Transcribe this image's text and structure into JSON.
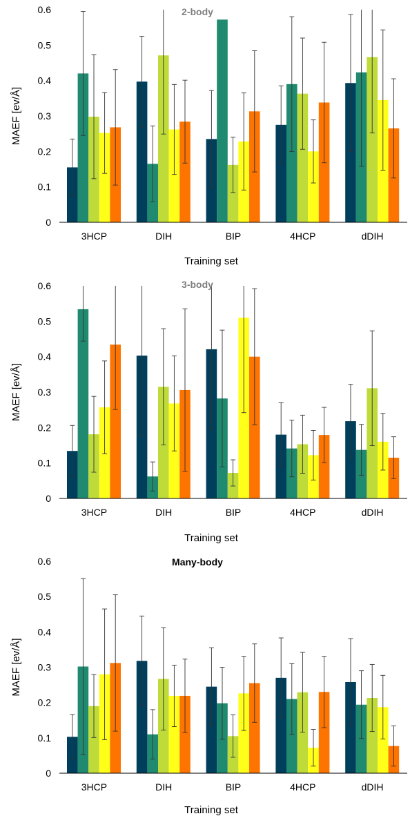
{
  "colors": {
    "series": [
      "#003f5c",
      "#1f8a70",
      "#bedb39",
      "#ffff1a",
      "#fd7400"
    ],
    "error_bar": "#333333",
    "axis": "#000000"
  },
  "chart_data": [
    {
      "type": "bar",
      "title": "2-body",
      "title_color": "#7f7f7f",
      "xlabel": "Training set",
      "xlabel_color": "#000000",
      "ylabel": "MAEF [ev/Å]",
      "ylim": [
        0,
        0.6
      ],
      "yticks": [
        "0",
        "0.1",
        "0.2",
        "0.3",
        "0.4",
        "0.5",
        "0.6"
      ],
      "grid": false,
      "legend": "none",
      "categories": [
        "3HCP",
        "DIH",
        "BIP",
        "4HCP",
        "dDIH"
      ],
      "series": [
        {
          "values": [
            0.155,
            0.397,
            0.235,
            0.275,
            0.393
          ],
          "error": [
            0.08,
            0.128,
            0.137,
            0.11,
            0.193
          ]
        },
        {
          "values": [
            0.42,
            0.165,
            0.572,
            0.39,
            0.423
          ],
          "error": [
            0.175,
            0.107,
            0.0,
            0.19,
            0.265
          ]
        },
        {
          "values": [
            0.298,
            0.471,
            0.162,
            0.363,
            0.466
          ],
          "error": [
            0.175,
            0.222,
            0.078,
            0.157,
            0.214
          ]
        },
        {
          "values": [
            0.252,
            0.262,
            0.228,
            0.2,
            0.345
          ],
          "error": [
            0.114,
            0.127,
            0.137,
            0.089,
            0.198
          ]
        },
        {
          "values": [
            0.268,
            0.284,
            0.313,
            0.338,
            0.265
          ],
          "error": [
            0.163,
            0.117,
            0.171,
            0.17,
            0.14
          ]
        }
      ]
    },
    {
      "type": "bar",
      "title": "3-body",
      "title_color": "#7f7f7f",
      "xlabel": "Training set",
      "xlabel_color": "#7f7f7f",
      "ylabel": "MAEF [ev/Å]",
      "ylim": [
        0,
        0.6
      ],
      "yticks": [
        "0",
        "0.1",
        "0.2",
        "0.3",
        "0.4",
        "0.5",
        "0.6"
      ],
      "grid": false,
      "legend": "none",
      "categories": [
        "3HCP",
        "DIH",
        "BIP",
        "4HCP",
        "dDIH"
      ],
      "series": [
        {
          "values": [
            0.134,
            0.403,
            0.421,
            0.18,
            0.218
          ],
          "error": [
            0.072,
            0.225,
            0.226,
            0.09,
            0.104
          ]
        },
        {
          "values": [
            0.534,
            0.062,
            0.282,
            0.141,
            0.137
          ],
          "error": [
            0.09,
            0.041,
            0.193,
            0.08,
            0.072
          ]
        },
        {
          "values": [
            0.181,
            0.315,
            0.072,
            0.153,
            0.311
          ],
          "error": [
            0.107,
            0.164,
            0.037,
            0.082,
            0.162
          ]
        },
        {
          "values": [
            0.257,
            0.268,
            0.51,
            0.122,
            0.16
          ],
          "error": [
            0.131,
            0.134,
            0.268,
            0.07,
            0.08
          ]
        },
        {
          "values": [
            0.434,
            0.306,
            0.4,
            0.179,
            0.115
          ],
          "error": [
            0.183,
            0.229,
            0.192,
            0.078,
            0.059
          ]
        }
      ]
    },
    {
      "type": "bar",
      "title": "Many-body",
      "title_color": "#000000",
      "xlabel": "Training set",
      "xlabel_color": "#000000",
      "ylabel": "MAEF [ev/Å]",
      "ylim": [
        0,
        0.6
      ],
      "yticks": [
        "0",
        "0.1",
        "0.2",
        "0.3",
        "0.4",
        "0.5",
        "0.6"
      ],
      "grid": false,
      "legend": "none",
      "categories": [
        "3HCP",
        "DIH",
        "BIP",
        "4HCP",
        "dDIH"
      ],
      "series": [
        {
          "values": [
            0.103,
            0.318,
            0.245,
            0.27,
            0.258
          ],
          "error": [
            0.063,
            0.127,
            0.11,
            0.113,
            0.123
          ]
        },
        {
          "values": [
            0.302,
            0.11,
            0.198,
            0.21,
            0.194
          ],
          "error": [
            0.249,
            0.07,
            0.102,
            0.1,
            0.096
          ]
        },
        {
          "values": [
            0.19,
            0.267,
            0.105,
            0.229,
            0.213
          ],
          "error": [
            0.089,
            0.145,
            0.06,
            0.113,
            0.095
          ]
        },
        {
          "values": [
            0.28,
            0.219,
            0.226,
            0.072,
            0.187
          ],
          "error": [
            0.185,
            0.087,
            0.105,
            0.052,
            0.09
          ]
        },
        {
          "values": [
            0.312,
            0.219,
            0.255,
            0.23,
            0.077
          ],
          "error": [
            0.193,
            0.104,
            0.111,
            0.101,
            0.057
          ]
        }
      ]
    }
  ]
}
